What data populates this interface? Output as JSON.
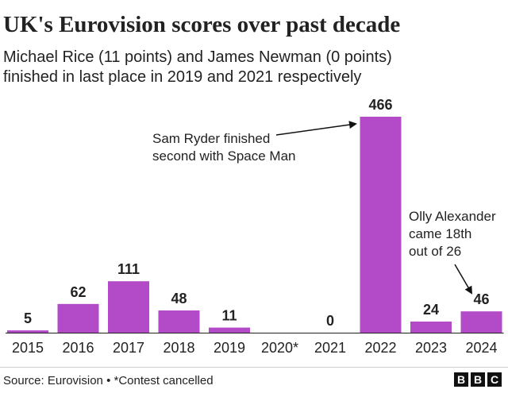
{
  "title": "UK's Eurovision scores over past decade",
  "subtitle_lines": [
    "Michael Rice (11 points) and James Newman (0 points)",
    "finished in last place in 2019 and 2021 respectively"
  ],
  "chart_data": {
    "type": "bar",
    "categories": [
      "2015",
      "2016",
      "2017",
      "2018",
      "2019",
      "2020*",
      "2021",
      "2022",
      "2023",
      "2024"
    ],
    "values": [
      5,
      62,
      111,
      48,
      11,
      null,
      0,
      466,
      24,
      46
    ],
    "value_labels": [
      "5",
      "62",
      "111",
      "48",
      "11",
      "",
      "0",
      "466",
      "24",
      "46"
    ],
    "ylim": [
      0,
      466
    ],
    "grid": false,
    "bar_color": "#b34ac8",
    "annotations": [
      {
        "target": "2022",
        "lines": [
          "Sam Ryder finished",
          "second with Space Man"
        ]
      },
      {
        "target": "2024",
        "lines": [
          "Olly Alexander",
          "came 18th",
          "out of 26"
        ]
      }
    ]
  },
  "footer": {
    "source": "Source: Eurovision • *Contest cancelled",
    "logo_letters": [
      "B",
      "B",
      "C"
    ]
  }
}
